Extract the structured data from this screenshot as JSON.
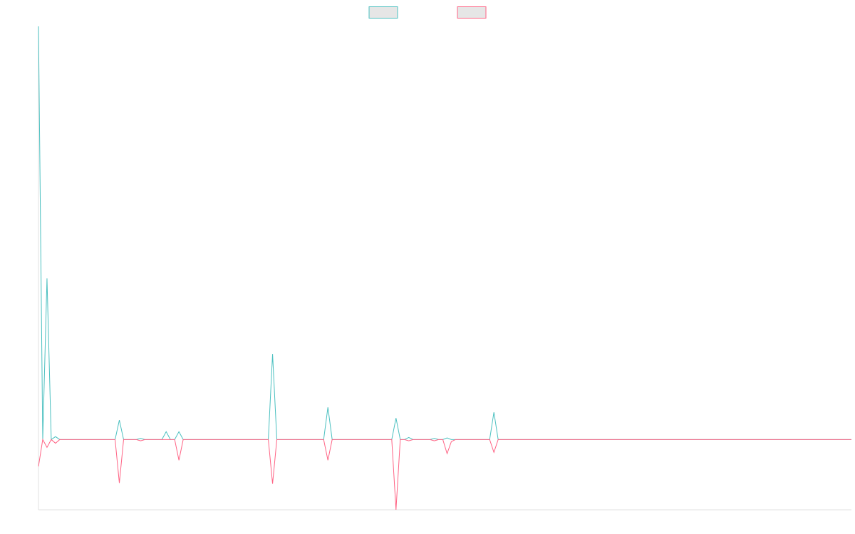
{
  "chart_data": {
    "type": "line",
    "x": [
      0,
      1,
      2,
      3,
      4,
      5,
      18,
      19,
      20,
      23,
      24,
      25,
      29,
      30,
      31,
      32,
      33,
      34,
      54,
      55,
      56,
      67,
      68,
      69,
      83,
      84,
      85,
      86,
      87,
      88,
      92,
      93,
      94,
      95,
      96,
      97,
      98,
      106,
      107,
      108,
      191
    ],
    "series": [
      {
        "color": "#4bc0c0",
        "values": [
          100,
          0,
          39,
          0,
          0.7,
          0,
          0,
          4.7,
          0,
          0,
          0.3,
          0,
          0,
          1.9,
          0,
          0,
          1.9,
          0,
          0,
          20.7,
          0,
          0,
          7.8,
          0,
          0,
          5.2,
          0,
          0,
          0.5,
          0,
          0,
          0.3,
          0,
          0,
          0.4,
          0,
          0,
          0,
          6.6,
          0,
          0
        ]
      },
      {
        "color": "#ff6384",
        "values": [
          -6.5,
          0,
          -1.9,
          0,
          -0.9,
          0,
          0,
          -10.5,
          0,
          0,
          -0.3,
          0,
          0,
          0,
          0,
          0,
          -5,
          0,
          0,
          -10.7,
          0,
          0,
          -5,
          0,
          0,
          -17,
          0,
          0,
          -0.3,
          0,
          0,
          -0.3,
          0,
          0,
          -3.4,
          -0.5,
          0,
          0,
          -3.1,
          0,
          0
        ]
      }
    ],
    "xlim": [
      0,
      191
    ],
    "ylim": [
      -17,
      100
    ],
    "legend": "top"
  }
}
